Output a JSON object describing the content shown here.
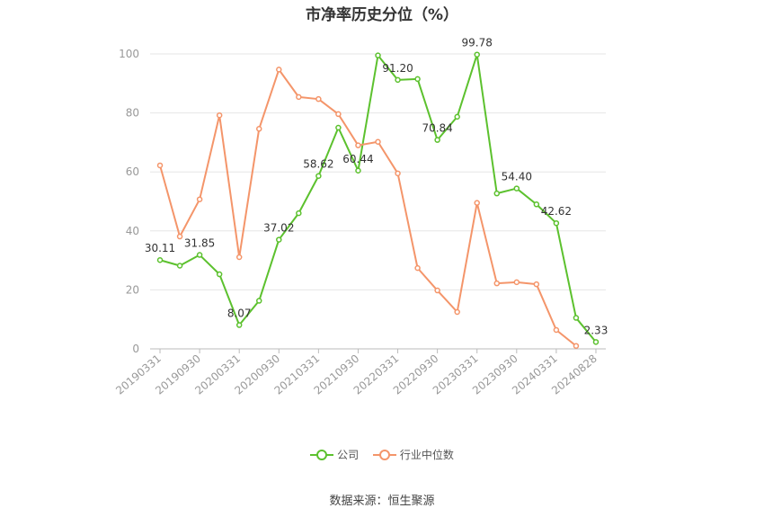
{
  "chart_data": {
    "type": "line",
    "title": "市净率历史分位（%）",
    "ylim": [
      0,
      100
    ],
    "yticks": [
      0,
      20,
      40,
      60,
      80,
      100
    ],
    "x": [
      "20190331",
      "20190630",
      "20190930",
      "20191231",
      "20200331",
      "20200630",
      "20200930",
      "20201231",
      "20210331",
      "20210630",
      "20210930",
      "20211231",
      "20220331",
      "20220630",
      "20220930",
      "20221231",
      "20230331",
      "20230630",
      "20230930",
      "20231231",
      "20240331",
      "20240630",
      "20240828"
    ],
    "xtick_labels": [
      "20190331",
      "20190930",
      "20200331",
      "20200930",
      "20210331",
      "20210930",
      "20220331",
      "20220930",
      "20230331",
      "20230930",
      "20240331",
      "20240828"
    ],
    "series": [
      {
        "name": "公司",
        "color": "#5cc12e",
        "values": [
          30.11,
          28.2,
          31.85,
          25.3,
          8.07,
          16.3,
          37.02,
          46.0,
          58.62,
          75.0,
          60.44,
          99.5,
          91.2,
          91.5,
          70.84,
          78.7,
          99.78,
          52.7,
          54.4,
          49.0,
          42.62,
          10.5,
          2.33
        ],
        "labels": {
          "0": "30.11",
          "2": "31.85",
          "4": "8.07",
          "6": "37.02",
          "8": "58.62",
          "10": "60.44",
          "12": "91.20",
          "14": "70.84",
          "16": "99.78",
          "18": "54.40",
          "20": "42.62",
          "22": "2.33"
        }
      },
      {
        "name": "行业中位数",
        "color": "#f4956a",
        "values": [
          62.2,
          38.1,
          50.7,
          79.2,
          31.1,
          74.6,
          94.7,
          85.4,
          84.7,
          79.6,
          69.0,
          70.2,
          59.5,
          27.4,
          19.8,
          12.5,
          49.5,
          22.2,
          22.6,
          21.9,
          6.4,
          1.0,
          null
        ]
      }
    ]
  },
  "source": "数据来源：恒生聚源"
}
